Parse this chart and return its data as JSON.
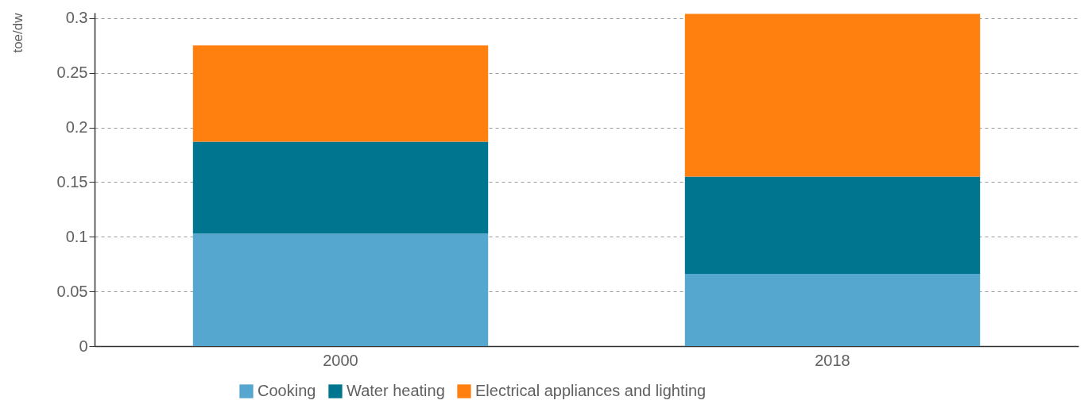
{
  "chart_data": {
    "type": "bar",
    "stacked": true,
    "categories": [
      "2000",
      "2018"
    ],
    "ylabel": "toe/dw",
    "ylim": [
      0,
      0.305
    ],
    "yticks": [
      0,
      0.05,
      0.1,
      0.15,
      0.2,
      0.25,
      0.3
    ],
    "grid": "y",
    "legend": "bottom",
    "series": [
      {
        "name": "Cooking",
        "color": "#56a7cf",
        "values": [
          0.103,
          0.066
        ]
      },
      {
        "name": "Water heating",
        "color": "#00758f",
        "values": [
          0.084,
          0.089
        ]
      },
      {
        "name": "Electrical appliances and lighting",
        "color": "#ff7f0f",
        "values": [
          0.088,
          0.149
        ]
      }
    ]
  }
}
